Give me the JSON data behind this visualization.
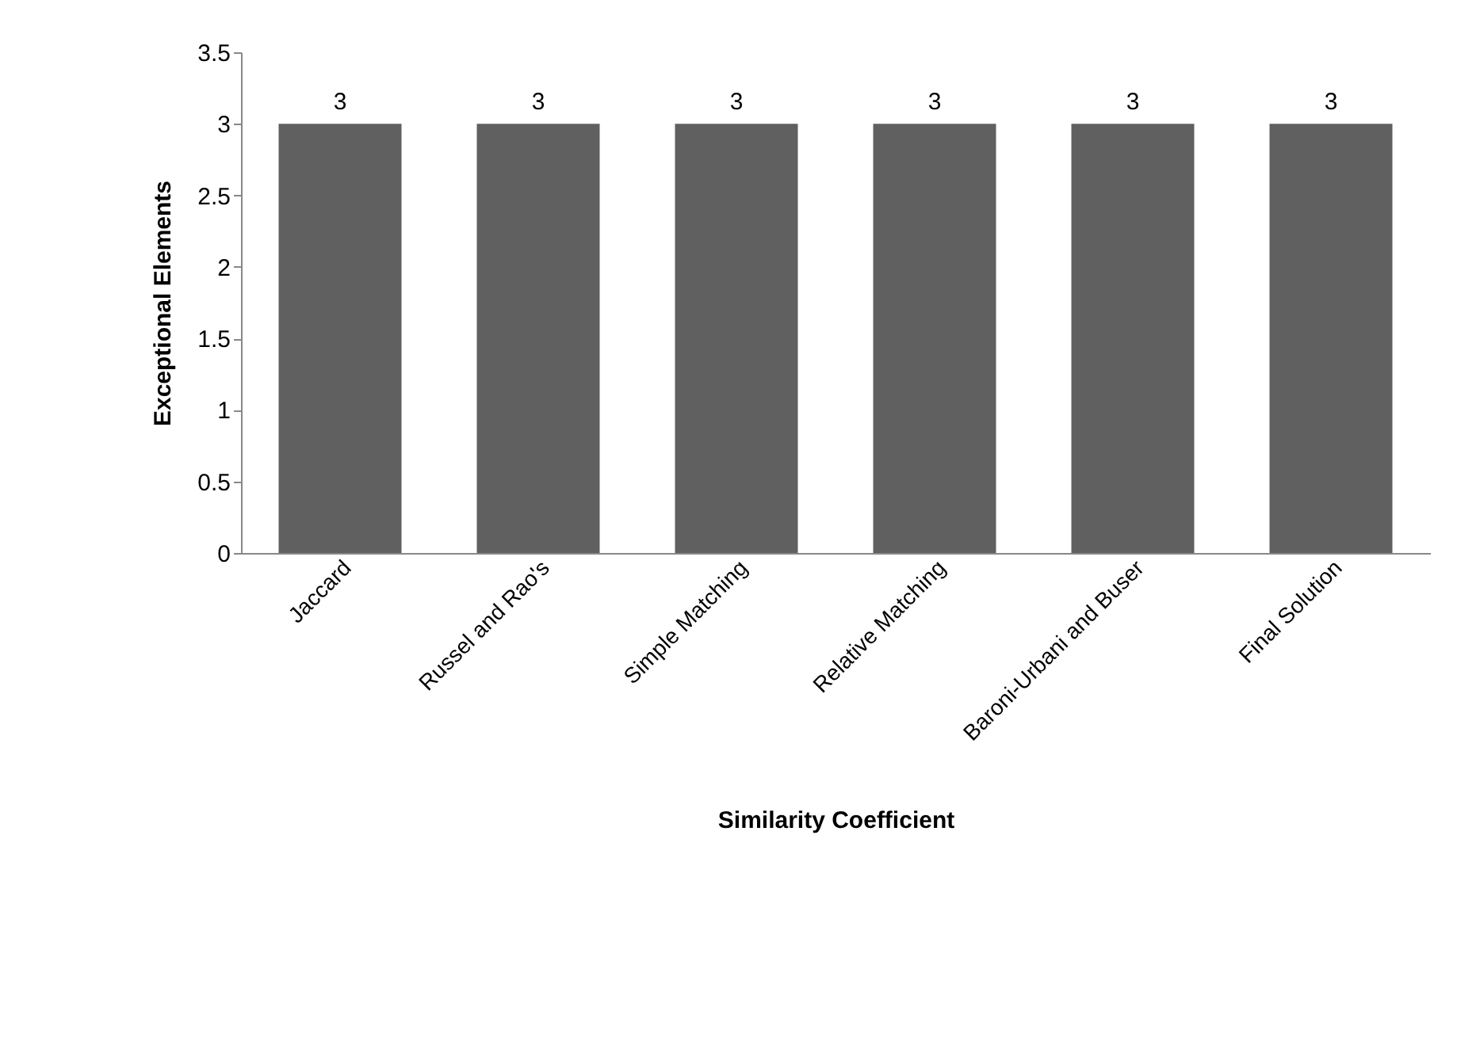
{
  "chart_data": {
    "type": "bar",
    "xlabel": "Similarity Coefficient",
    "ylabel": "Exceptional Elements",
    "categories": [
      "Jaccard",
      "Russel and Rao's",
      "Simple Matching",
      "Relative Matching",
      "Baroni-Urbani and Buser",
      "Final Solution"
    ],
    "values": [
      3,
      3,
      3,
      3,
      3,
      3
    ],
    "color": "#606060",
    "ylim": [
      0,
      3.5
    ],
    "yticks": [
      0,
      0.5,
      1,
      1.5,
      2,
      2.5,
      3,
      3.5
    ],
    "grid": false,
    "data_labels": true
  }
}
